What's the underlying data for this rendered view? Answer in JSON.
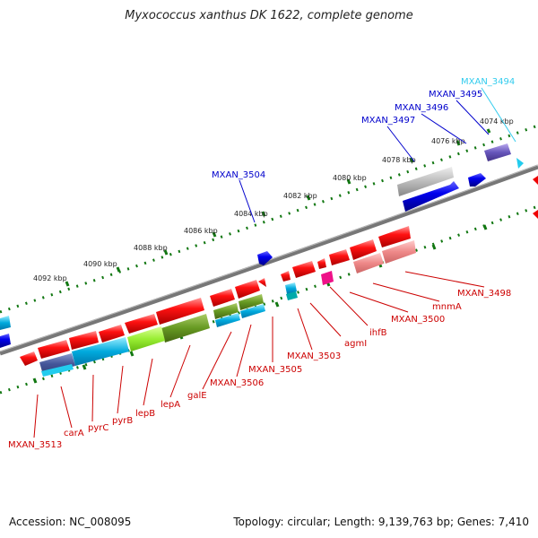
{
  "title": "Myxococcus xanthus DK 1622, complete genome",
  "footer": {
    "accession": "Accession: NC_008095",
    "summary": "Topology: circular; Length: 9,139,763 bp; Genes: 7,410"
  },
  "colors": {
    "gene_red": "#ee0000",
    "gene_blue": "#0000dd",
    "gene_cyan": "#22ccdd",
    "gene_gray": "#999999",
    "gene_purple": "#6655bb",
    "label_blue": "#0000cc",
    "label_red": "#cc0000",
    "label_cyan": "#33ccee",
    "backbone": "#777777",
    "tick_green": "#117711"
  },
  "ruler_labels": [
    "4074 kbp",
    "4076 kbp",
    "4078 kbp",
    "4080 kbp",
    "4082 kbp",
    "4084 kbp",
    "4086 kbp",
    "4088 kbp",
    "4090 kbp",
    "4092 kbp"
  ],
  "top_labels": [
    "MXAN_3494",
    "MXAN_3495",
    "MXAN_3496",
    "MXAN_3497",
    "MXAN_3504"
  ],
  "bottom_labels": [
    "MXAN_3498",
    "mnmA",
    "MXAN_3500",
    "ihfB",
    "agmI",
    "MXAN_3503",
    "MXAN_3505",
    "MXAN_3506",
    "galE",
    "lepA",
    "lepB",
    "pyrB",
    "pyrC",
    "carA",
    "MXAN_3513"
  ]
}
